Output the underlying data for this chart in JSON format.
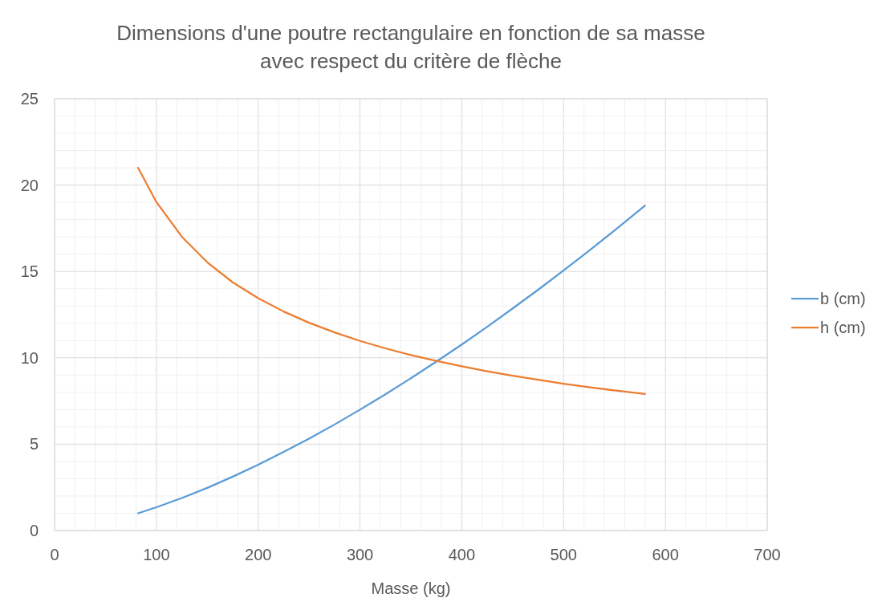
{
  "chart_data": {
    "type": "line",
    "title": "Dimensions d'une poutre rectangulaire en fonction de sa masse\navec respect du critère de flèche",
    "xlabel": "Masse (kg)",
    "x": [
      82,
      100,
      125,
      150,
      175,
      200,
      225,
      250,
      275,
      300,
      325,
      350,
      375,
      400,
      425,
      450,
      475,
      500,
      525,
      550,
      580
    ],
    "series": [
      {
        "name": "b (cm)",
        "color": "#5b9bd5",
        "values": [
          1.0,
          1.35,
          1.88,
          2.47,
          3.12,
          3.81,
          4.55,
          5.32,
          6.14,
          7.0,
          7.89,
          8.82,
          9.78,
          10.77,
          11.8,
          12.86,
          13.94,
          15.06,
          16.2,
          17.37,
          18.81
        ]
      },
      {
        "name": "h (cm)",
        "color": "#ed7d31",
        "values": [
          21.0,
          19.02,
          17.01,
          15.53,
          14.37,
          13.45,
          12.68,
          12.03,
          11.47,
          10.98,
          10.55,
          10.16,
          9.82,
          9.51,
          9.22,
          8.96,
          8.73,
          8.5,
          8.3,
          8.11,
          7.9
        ]
      }
    ],
    "xlim": [
      0,
      700
    ],
    "ylim": [
      0,
      25
    ],
    "xticks": [
      0,
      {
        "value": 20,
        "label": null
      },
      {
        "value": 40,
        "label": null
      },
      {
        "value": 60,
        "label": null
      },
      {
        "value": 80,
        "label": null
      },
      100,
      {
        "value": 120,
        "label": null
      },
      {
        "value": 140,
        "label": null
      },
      {
        "value": 160,
        "label": null
      },
      {
        "value": 180,
        "label": null
      },
      200,
      {
        "value": 220,
        "label": null
      },
      {
        "value": 240,
        "label": null
      },
      {
        "value": 260,
        "label": null
      },
      {
        "value": 280,
        "label": null
      },
      300,
      {
        "value": 320,
        "label": null
      },
      {
        "value": 340,
        "label": null
      },
      {
        "value": 360,
        "label": null
      },
      {
        "value": 380,
        "label": null
      },
      400,
      {
        "value": 420,
        "label": null
      },
      {
        "value": 440,
        "label": null
      },
      {
        "value": 460,
        "label": null
      },
      {
        "value": 480,
        "label": null
      },
      500,
      {
        "value": 520,
        "label": null
      },
      {
        "value": 540,
        "label": null
      },
      {
        "value": 560,
        "label": null
      },
      {
        "value": 580,
        "label": null
      },
      600,
      {
        "value": 620,
        "label": null
      },
      {
        "value": 640,
        "label": null
      },
      {
        "value": 660,
        "label": null
      },
      {
        "value": 680,
        "label": null
      },
      700
    ],
    "yticks": [
      0,
      {
        "value": 1,
        "label": null
      },
      {
        "value": 2,
        "label": null
      },
      {
        "value": 3,
        "label": null
      },
      {
        "value": 4,
        "label": null
      },
      5,
      {
        "value": 6,
        "label": null
      },
      {
        "value": 7,
        "label": null
      },
      {
        "value": 8,
        "label": null
      },
      {
        "value": 9,
        "label": null
      },
      10,
      {
        "value": 11,
        "label": null
      },
      {
        "value": 12,
        "label": null
      },
      {
        "value": 13,
        "label": null
      },
      {
        "value": 14,
        "label": null
      },
      15,
      {
        "value": 16,
        "label": null
      },
      {
        "value": 17,
        "label": null
      },
      {
        "value": 18,
        "label": null
      },
      {
        "value": 19,
        "label": null
      },
      20,
      {
        "value": 21,
        "label": null
      },
      {
        "value": 22,
        "label": null
      },
      {
        "value": 23,
        "label": null
      },
      {
        "value": 24,
        "label": null
      },
      25
    ],
    "grid": true,
    "legend": "right",
    "marker": "none",
    "line_style": "solid"
  }
}
